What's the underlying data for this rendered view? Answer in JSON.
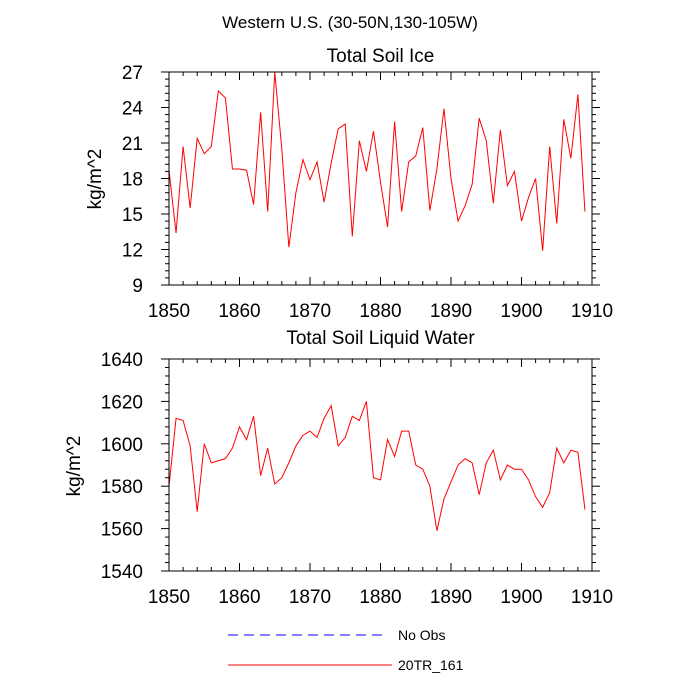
{
  "figure_title": "Western U.S. (30-50N,130-105W)",
  "chart_data": [
    {
      "type": "line",
      "title": "Total Soil Ice",
      "ylabel": "kg/m^2",
      "xlabel": "",
      "xlim": [
        1850,
        1910
      ],
      "ylim": [
        9,
        27
      ],
      "xticks": [
        1850,
        1860,
        1870,
        1880,
        1890,
        1900,
        1910
      ],
      "yticks": [
        9,
        12,
        15,
        18,
        21,
        24,
        27
      ],
      "series": [
        {
          "name": "20TR_161",
          "color": "#ff0000",
          "x": [
            1850,
            1851,
            1852,
            1853,
            1854,
            1855,
            1856,
            1857,
            1858,
            1859,
            1860,
            1861,
            1862,
            1863,
            1864,
            1865,
            1866,
            1867,
            1868,
            1869,
            1870,
            1871,
            1872,
            1873,
            1874,
            1875,
            1876,
            1877,
            1878,
            1879,
            1880,
            1881,
            1882,
            1883,
            1884,
            1885,
            1886,
            1887,
            1888,
            1889,
            1890,
            1891,
            1892,
            1893,
            1894,
            1895,
            1896,
            1897,
            1898,
            1899,
            1900,
            1901,
            1902,
            1903,
            1904,
            1905,
            1906,
            1907,
            1908,
            1909
          ],
          "values": [
            18.7,
            13.4,
            20.7,
            15.5,
            21.4,
            20.1,
            20.7,
            25.4,
            24.8,
            18.8,
            18.8,
            18.7,
            15.8,
            23.6,
            15.2,
            27.0,
            20.5,
            12.2,
            16.8,
            19.6,
            17.9,
            19.4,
            16.0,
            19.3,
            22.2,
            22.6,
            13.1,
            21.2,
            18.6,
            22.0,
            17.7,
            13.9,
            22.8,
            15.2,
            19.4,
            19.9,
            22.3,
            15.3,
            18.8,
            23.9,
            18.0,
            14.4,
            15.7,
            17.5,
            23.1,
            21.2,
            15.9,
            22.1,
            17.4,
            18.6,
            14.4,
            16.4,
            18.0,
            11.9,
            20.7,
            14.2,
            23.0,
            19.7,
            25.1,
            15.2
          ]
        }
      ]
    },
    {
      "type": "line",
      "title": "Total Soil Liquid Water",
      "ylabel": "kg/m^2",
      "xlabel": "",
      "xlim": [
        1850,
        1910
      ],
      "ylim": [
        1540,
        1640
      ],
      "xticks": [
        1850,
        1860,
        1870,
        1880,
        1890,
        1900,
        1910
      ],
      "yticks": [
        1540,
        1560,
        1580,
        1600,
        1620,
        1640
      ],
      "series": [
        {
          "name": "20TR_161",
          "color": "#ff0000",
          "x": [
            1850,
            1851,
            1852,
            1853,
            1854,
            1855,
            1856,
            1857,
            1858,
            1859,
            1860,
            1861,
            1862,
            1863,
            1864,
            1865,
            1866,
            1867,
            1868,
            1869,
            1870,
            1871,
            1872,
            1873,
            1874,
            1875,
            1876,
            1877,
            1878,
            1879,
            1880,
            1881,
            1882,
            1883,
            1884,
            1885,
            1886,
            1887,
            1888,
            1889,
            1890,
            1891,
            1892,
            1893,
            1894,
            1895,
            1896,
            1897,
            1898,
            1899,
            1900,
            1901,
            1902,
            1903,
            1904,
            1905,
            1906,
            1907,
            1908,
            1909
          ],
          "values": [
            1580,
            1612,
            1611,
            1599,
            1568,
            1600,
            1591,
            1592,
            1593,
            1598,
            1608,
            1602,
            1613,
            1585,
            1598,
            1581,
            1584,
            1591,
            1599,
            1604,
            1606,
            1603,
            1612,
            1618,
            1599,
            1603,
            1613,
            1611,
            1620,
            1584,
            1583,
            1602,
            1594,
            1606,
            1606,
            1590,
            1588,
            1580,
            1559,
            1574,
            1582,
            1590,
            1593,
            1591,
            1576,
            1591,
            1597,
            1583,
            1590,
            1588,
            1588,
            1583,
            1575,
            1570,
            1577,
            1598,
            1591,
            1597,
            1596,
            1569
          ]
        }
      ]
    }
  ],
  "legend": {
    "position": "bottom",
    "items": [
      {
        "label": "No Obs",
        "color": "#0000ff",
        "style": "dashed"
      },
      {
        "label": "20TR_161",
        "color": "#ff0000",
        "style": "solid"
      }
    ]
  }
}
